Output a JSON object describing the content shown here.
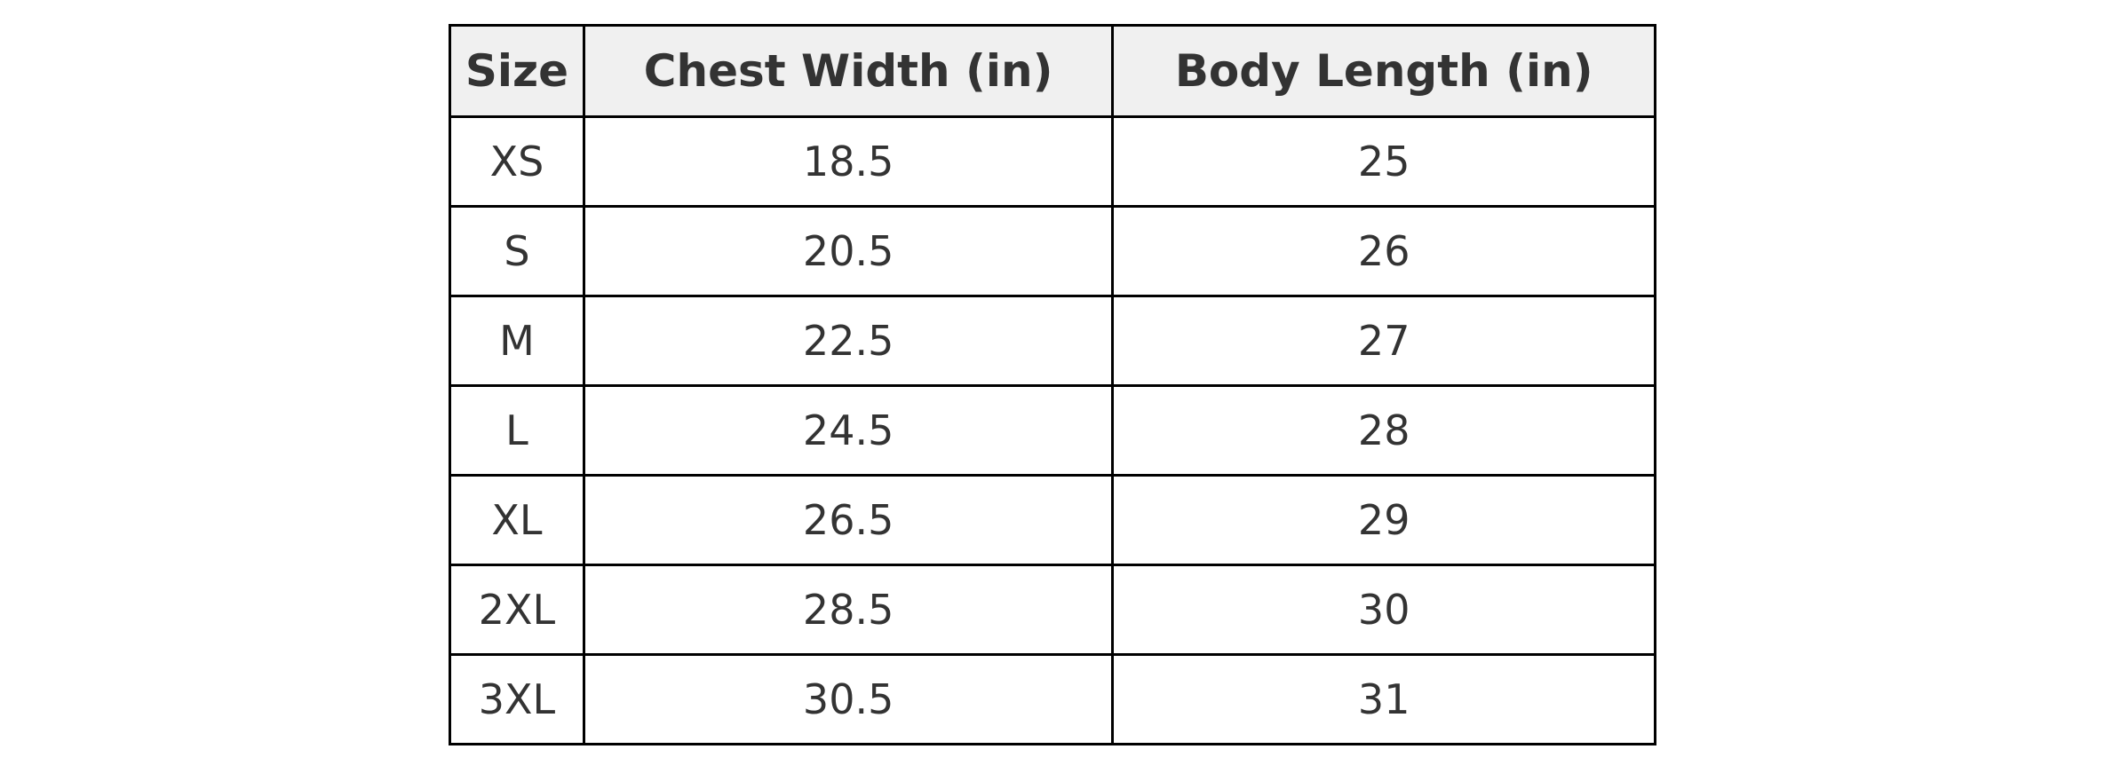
{
  "table": {
    "headers": [
      "Size",
      "Chest Width (in)",
      "Body Length (in)"
    ],
    "rows": [
      [
        "XS",
        "18.5",
        "25"
      ],
      [
        "S",
        "20.5",
        "26"
      ],
      [
        "M",
        "22.5",
        "27"
      ],
      [
        "L",
        "24.5",
        "28"
      ],
      [
        "XL",
        "26.5",
        "29"
      ],
      [
        "2XL",
        "28.5",
        "30"
      ],
      [
        "3XL",
        "30.5",
        "31"
      ]
    ]
  }
}
